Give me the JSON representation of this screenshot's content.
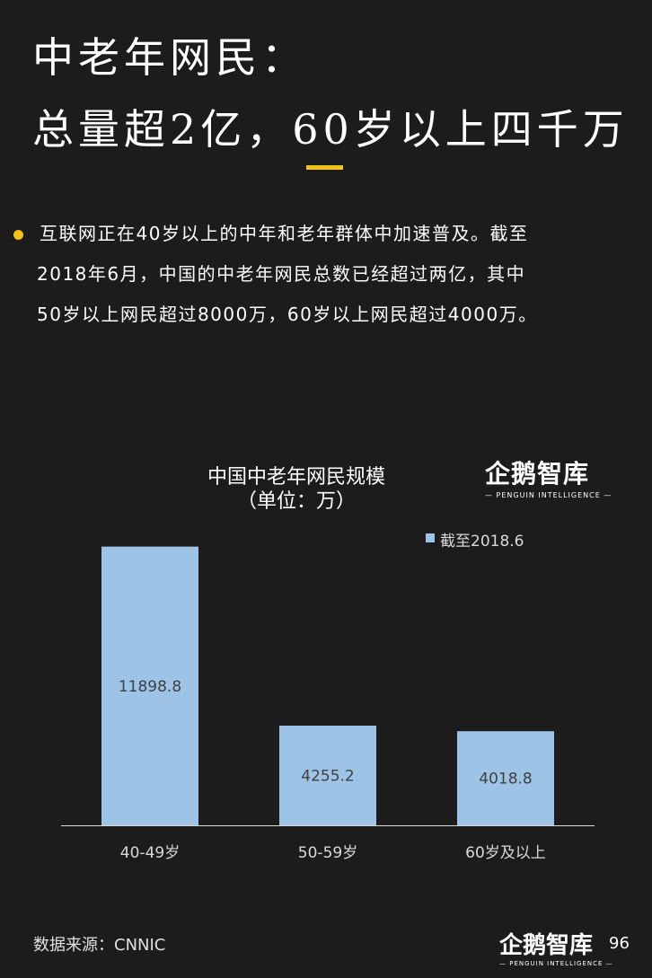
{
  "title": {
    "line1": "中老年网民：",
    "line2": "总量超2亿，60岁以上四千万"
  },
  "body": {
    "line1": "互联网正在40岁以上的中年和老年群体中加速普及。截至",
    "line2": "2018年6月，中国的中老年网民总数已经超过两亿，其中",
    "line3": "50岁以上网民超过8000万，60岁以上网民超过4000万。"
  },
  "logo": {
    "cn": "企鹅智库",
    "en": "— PENGUIN INTELLIGENCE —"
  },
  "chart_data": {
    "type": "bar",
    "title": "中国中老年网民规模",
    "subtitle": "（单位：万）",
    "categories": [
      "40-49岁",
      "50-59岁",
      "60岁及以上"
    ],
    "series": [
      {
        "name": "截至2018.6",
        "values": [
          11898.8,
          4255.2,
          4018.8
        ]
      }
    ],
    "value_labels": [
      "11898.8",
      "4255.2",
      "4018.8"
    ],
    "xlabel": "",
    "ylabel": "",
    "ylim": [
      0,
      12000
    ],
    "grid": false,
    "legend_position": "top-right"
  },
  "footer": {
    "source": "数据来源：CNNIC",
    "page": "96"
  },
  "colors": {
    "background": "#1c1c1c",
    "accent": "#f2c318",
    "bar": "#9dc3e6"
  }
}
